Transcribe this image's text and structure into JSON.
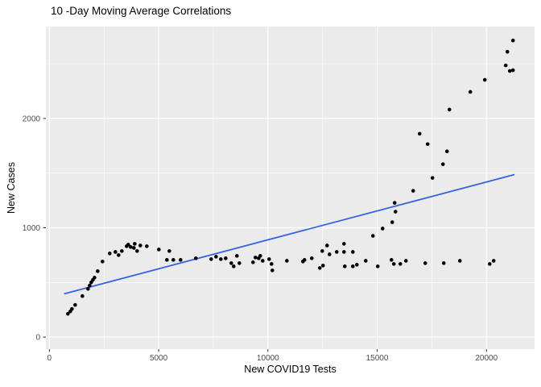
{
  "chart_data": {
    "type": "scatter",
    "title": "10 -Day Moving Average Correlations",
    "xlabel": "New COVID19 Tests",
    "ylabel": "New Cases",
    "x_ticks": [
      0,
      5000,
      10000,
      15000,
      20000
    ],
    "y_ticks": [
      0,
      1000,
      2000
    ],
    "x_minor_ticks": [
      2500,
      7500,
      12500,
      17500
    ],
    "y_minor_ticks": [
      500,
      1500,
      2500
    ],
    "xlim": [
      -160,
      22200
    ],
    "ylim": [
      -110,
      2840
    ],
    "grid": true,
    "legend": false,
    "panel_color": "#EBEBEB",
    "grid_color": "#FFFFFF",
    "point_color": "#000000",
    "tick_label_color": "#4d4d4d",
    "points": [
      [
        847,
        213
      ],
      [
        958,
        235
      ],
      [
        1031,
        257
      ],
      [
        1179,
        294
      ],
      [
        1510,
        375
      ],
      [
        1768,
        441
      ],
      [
        1842,
        471
      ],
      [
        1915,
        500
      ],
      [
        1989,
        522
      ],
      [
        2063,
        544
      ],
      [
        2210,
        603
      ],
      [
        2431,
        691
      ],
      [
        2762,
        765
      ],
      [
        3020,
        779
      ],
      [
        3167,
        750
      ],
      [
        3315,
        787
      ],
      [
        3536,
        831
      ],
      [
        3609,
        846
      ],
      [
        3720,
        824
      ],
      [
        3867,
        816
      ],
      [
        3904,
        853
      ],
      [
        4014,
        787
      ],
      [
        4162,
        838
      ],
      [
        4457,
        831
      ],
      [
        5009,
        801
      ],
      [
        5377,
        706
      ],
      [
        5488,
        787
      ],
      [
        5672,
        706
      ],
      [
        6004,
        706
      ],
      [
        6703,
        721
      ],
      [
        7403,
        713
      ],
      [
        7624,
        735
      ],
      [
        7845,
        713
      ],
      [
        8066,
        721
      ],
      [
        8324,
        676
      ],
      [
        8434,
        647
      ],
      [
        8581,
        743
      ],
      [
        8692,
        676
      ],
      [
        9318,
        684
      ],
      [
        9428,
        728
      ],
      [
        9576,
        721
      ],
      [
        9649,
        743
      ],
      [
        9760,
        698
      ],
      [
        10054,
        713
      ],
      [
        10165,
        669
      ],
      [
        10202,
        610
      ],
      [
        10865,
        698
      ],
      [
        11601,
        691
      ],
      [
        11675,
        706
      ],
      [
        12006,
        721
      ],
      [
        12375,
        632
      ],
      [
        12522,
        654
      ],
      [
        12485,
        787
      ],
      [
        12706,
        838
      ],
      [
        12817,
        757
      ],
      [
        13148,
        779
      ],
      [
        13480,
        853
      ],
      [
        13480,
        779
      ],
      [
        13516,
        647
      ],
      [
        13885,
        779
      ],
      [
        13885,
        647
      ],
      [
        14069,
        662
      ],
      [
        14474,
        698
      ],
      [
        14805,
        926
      ],
      [
        15026,
        647
      ],
      [
        15247,
        993
      ],
      [
        15652,
        706
      ],
      [
        15689,
        1051
      ],
      [
        15762,
        669
      ],
      [
        15799,
        1228
      ],
      [
        15836,
        1147
      ],
      [
        16057,
        669
      ],
      [
        16315,
        698
      ],
      [
        16646,
        1338
      ],
      [
        16941,
        1860
      ],
      [
        17198,
        676
      ],
      [
        17309,
        1765
      ],
      [
        17530,
        1456
      ],
      [
        18009,
        1581
      ],
      [
        18046,
        676
      ],
      [
        18193,
        1699
      ],
      [
        18303,
        2081
      ],
      [
        18782,
        698
      ],
      [
        19261,
        2243
      ],
      [
        19924,
        2353
      ],
      [
        20145,
        669
      ],
      [
        20329,
        698
      ],
      [
        20881,
        2485
      ],
      [
        20955,
        2610
      ],
      [
        21066,
        2434
      ],
      [
        21213,
        2441
      ],
      [
        21213,
        2713
      ]
    ],
    "trend_line": {
      "type": "linear",
      "color": "#3563E2",
      "x_start": 700,
      "y_start": 397,
      "x_end": 21250,
      "y_end": 1485
    }
  }
}
